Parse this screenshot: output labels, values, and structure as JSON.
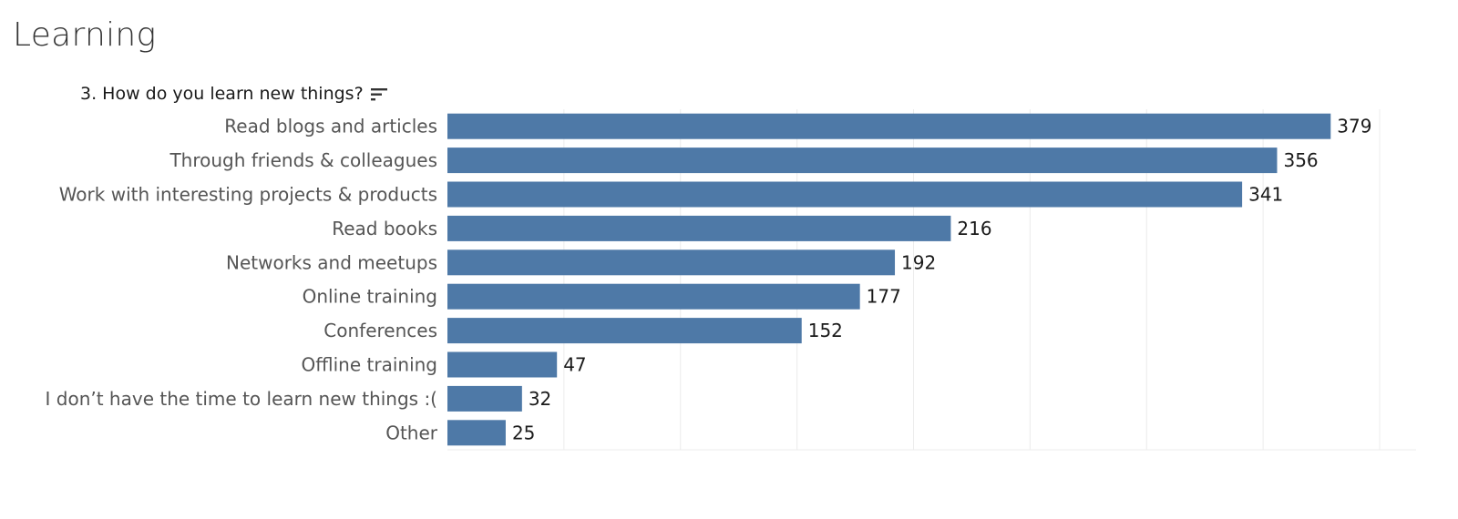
{
  "page": {
    "title": "Learning"
  },
  "colors": {
    "bar": "#4e79a7",
    "grid": "#ececec"
  },
  "sort_icon": "sort-descending-icon",
  "chart_data": {
    "type": "bar",
    "orientation": "horizontal",
    "title": "3. How do you learn new things?",
    "xlabel": "",
    "ylabel": "",
    "xlim": [
      0,
      400
    ],
    "grid": true,
    "legend": "none",
    "categories": [
      "Read blogs and articles",
      "Through friends & colleagues",
      "Work with interesting projects & products",
      "Read books",
      "Networks and meetups",
      "Online training",
      "Conferences",
      "Offline training",
      "I don’t have the time to learn new things :(",
      "Other"
    ],
    "values": [
      379,
      356,
      341,
      216,
      192,
      177,
      152,
      47,
      32,
      25
    ]
  }
}
